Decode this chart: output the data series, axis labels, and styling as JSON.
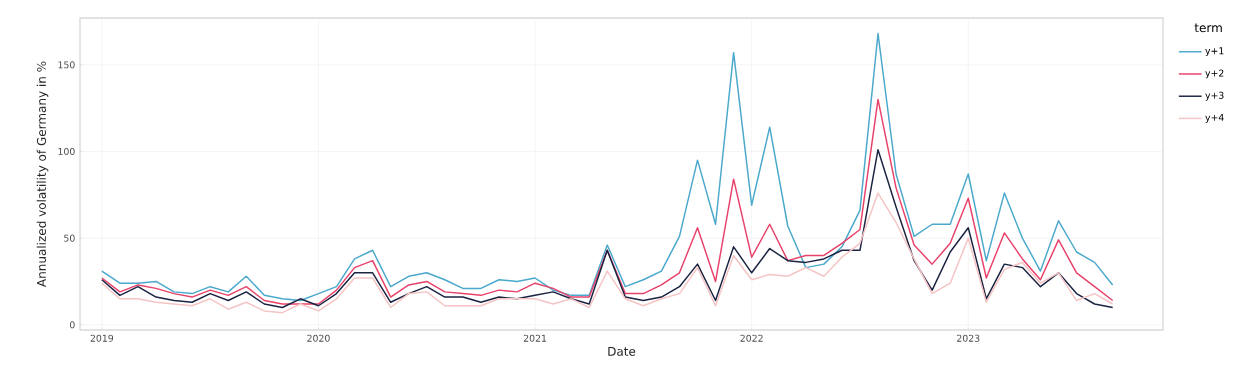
{
  "chart_data": {
    "type": "line",
    "xlabel": "Date",
    "ylabel": "Annualized volatility of Germany in %",
    "legend_title": "term",
    "x": [
      "2019-01",
      "2019-02",
      "2019-03",
      "2019-04",
      "2019-05",
      "2019-06",
      "2019-07",
      "2019-08",
      "2019-09",
      "2019-10",
      "2019-11",
      "2019-12",
      "2020-01",
      "2020-02",
      "2020-03",
      "2020-04",
      "2020-05",
      "2020-06",
      "2020-07",
      "2020-08",
      "2020-09",
      "2020-10",
      "2020-11",
      "2020-12",
      "2021-01",
      "2021-02",
      "2021-03",
      "2021-04",
      "2021-05",
      "2021-06",
      "2021-07",
      "2021-08",
      "2021-09",
      "2021-10",
      "2021-11",
      "2021-12",
      "2022-01",
      "2022-02",
      "2022-03",
      "2022-04",
      "2022-05",
      "2022-06",
      "2022-07",
      "2022-08",
      "2022-09",
      "2022-10",
      "2022-11",
      "2022-12",
      "2023-01",
      "2023-02",
      "2023-03",
      "2023-04",
      "2023-05",
      "2023-06",
      "2023-07",
      "2023-08",
      "2023-09"
    ],
    "series": [
      {
        "name": "y+1",
        "color": "#4aa8cc",
        "values": [
          31,
          24,
          24,
          25,
          19,
          18,
          22,
          19,
          28,
          17,
          15,
          14,
          18,
          22,
          38,
          43,
          22,
          28,
          30,
          26,
          21,
          21,
          26,
          25,
          27,
          20,
          17,
          17,
          46,
          22,
          26,
          31,
          51,
          95,
          58,
          157,
          69,
          114,
          57,
          33,
          35,
          45,
          66,
          168,
          87,
          51,
          58,
          58,
          87,
          37,
          76,
          50,
          31,
          60,
          42,
          36,
          23
        ]
      },
      {
        "name": "y+2",
        "color": "#e8416a",
        "values": [
          27,
          19,
          23,
          21,
          18,
          16,
          20,
          17,
          22,
          14,
          12,
          12,
          12,
          20,
          33,
          37,
          16,
          23,
          25,
          19,
          18,
          17,
          20,
          19,
          24,
          21,
          16,
          16,
          43,
          18,
          18,
          23,
          30,
          56,
          25,
          84,
          39,
          58,
          37,
          40,
          40,
          47,
          55,
          130,
          79,
          46,
          35,
          47,
          73,
          27,
          53,
          38,
          26,
          49,
          30,
          22,
          14
        ]
      },
      {
        "name": "y+3",
        "color": "#1a2341",
        "values": [
          26,
          17,
          22,
          16,
          14,
          13,
          18,
          14,
          19,
          12,
          10,
          15,
          11,
          18,
          30,
          30,
          13,
          18,
          22,
          16,
          16,
          13,
          16,
          15,
          17,
          19,
          15,
          12,
          43,
          16,
          14,
          16,
          22,
          35,
          14,
          45,
          30,
          44,
          37,
          36,
          38,
          43,
          43,
          101,
          68,
          37,
          20,
          42,
          56,
          15,
          35,
          33,
          22,
          30,
          18,
          12,
          10
        ]
      },
      {
        "name": "y+4",
        "color": "#f5c4c4",
        "values": [
          24,
          15,
          15,
          13,
          12,
          11,
          15,
          9,
          13,
          8,
          7,
          12,
          8,
          15,
          27,
          27,
          10,
          18,
          19,
          11,
          11,
          11,
          15,
          15,
          15,
          12,
          15,
          10,
          31,
          15,
          11,
          15,
          18,
          33,
          11,
          40,
          26,
          29,
          28,
          33,
          28,
          39,
          47,
          76,
          59,
          38,
          18,
          24,
          50,
          13,
          32,
          36,
          24,
          30,
          14,
          18,
          12
        ]
      }
    ],
    "xlim": [
      "2018-11-25",
      "2023-11-25"
    ],
    "xticks": [
      "2019",
      "2020",
      "2021",
      "2022",
      "2023"
    ],
    "ylim": [
      -3,
      177
    ],
    "yticks": [
      0,
      50,
      100,
      150
    ],
    "grid": true,
    "legend": "right",
    "line_style": "solid",
    "marker": "none"
  }
}
